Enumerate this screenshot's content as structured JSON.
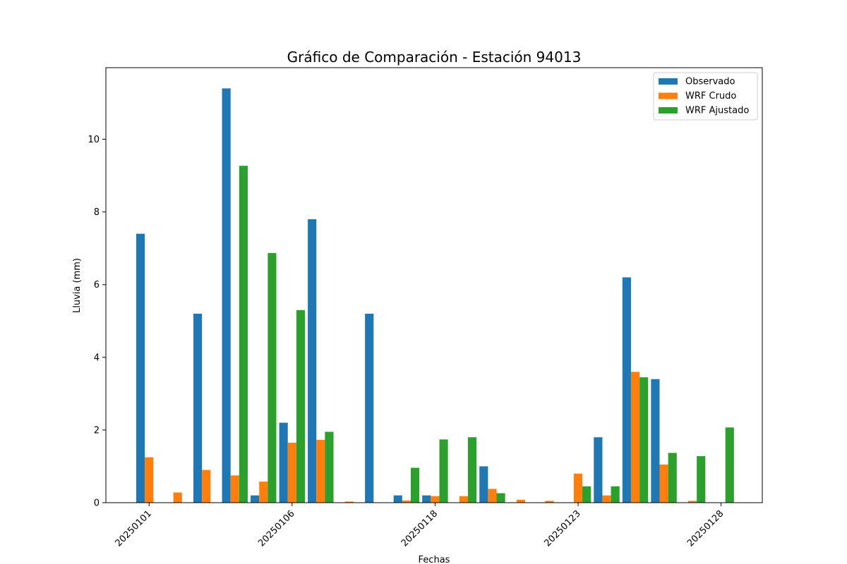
{
  "chart_data": {
    "type": "bar",
    "title": "Gráfico de Comparación - Estación 94013",
    "xlabel": "Fechas",
    "ylabel": "Lluvia (mm)",
    "ylim": [
      0,
      11.97
    ],
    "yticks": [
      "0",
      "2",
      "4",
      "6",
      "8",
      "10"
    ],
    "xtick_labels": [
      "20250101",
      "20250106",
      "20250118",
      "20250123",
      "20250128"
    ],
    "xtick_groups": [
      0,
      5,
      10,
      15,
      20
    ],
    "grid": false,
    "legend_position": "top-right",
    "series": [
      {
        "name": "Observado",
        "color": "#1f77b4",
        "values": [
          7.4,
          0,
          5.2,
          11.4,
          0.2,
          2.2,
          7.8,
          0,
          5.2,
          0.2,
          0.2,
          0,
          1.0,
          0,
          0,
          0,
          1.8,
          6.2,
          3.4,
          0,
          0,
          0
        ]
      },
      {
        "name": "WRF Crudo",
        "color": "#ff7f0e",
        "values": [
          1.25,
          0.28,
          0.9,
          0.75,
          0.58,
          1.65,
          1.73,
          0.03,
          0,
          0.06,
          0.18,
          0.18,
          0.38,
          0.08,
          0.05,
          0.8,
          0.2,
          3.6,
          1.05,
          0.05,
          0,
          0
        ]
      },
      {
        "name": "WRF Ajustado",
        "color": "#2ca02c",
        "values": [
          0,
          0,
          0,
          9.27,
          6.87,
          5.3,
          1.95,
          0,
          0,
          0.96,
          1.74,
          1.8,
          0.26,
          0,
          0,
          0.45,
          0.45,
          3.45,
          1.37,
          1.28,
          2.07,
          0
        ]
      }
    ]
  }
}
